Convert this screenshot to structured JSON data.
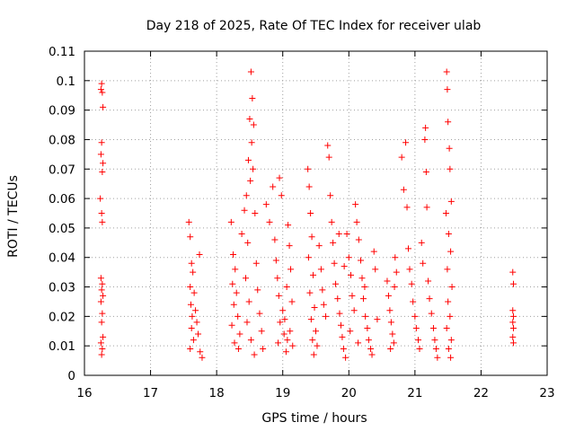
{
  "chart_data": {
    "type": "scatter",
    "title": "Day 218 of 2025, Rate Of TEC Index for receiver ulab",
    "xlabel": "GPS time / hours",
    "ylabel": "ROTI / TECUs",
    "xlim": [
      16,
      23
    ],
    "ylim": [
      0,
      0.11
    ],
    "x_ticks": [
      "16",
      "17",
      "18",
      "19",
      "20",
      "21",
      "22",
      "23"
    ],
    "y_ticks": [
      "0",
      "0.01",
      "0.02",
      "0.03",
      "0.04",
      "0.05",
      "0.06",
      "0.07",
      "0.08",
      "0.09",
      "0.1",
      "0.11"
    ],
    "grid": true,
    "legend": "none",
    "marker": "+",
    "color": "#ff0000",
    "series": [
      {
        "points": [
          [
            16.26,
            0.099
          ],
          [
            16.27,
            0.096
          ],
          [
            16.25,
            0.097
          ],
          [
            16.28,
            0.091
          ],
          [
            16.26,
            0.079
          ],
          [
            16.25,
            0.075
          ],
          [
            16.28,
            0.072
          ],
          [
            16.27,
            0.069
          ],
          [
            16.24,
            0.06
          ],
          [
            16.26,
            0.055
          ],
          [
            16.27,
            0.052
          ],
          [
            16.25,
            0.033
          ],
          [
            16.27,
            0.031
          ],
          [
            16.26,
            0.029
          ],
          [
            16.28,
            0.027
          ],
          [
            16.25,
            0.025
          ],
          [
            16.27,
            0.021
          ],
          [
            16.26,
            0.018
          ],
          [
            16.28,
            0.013
          ],
          [
            16.25,
            0.011
          ],
          [
            16.27,
            0.009
          ],
          [
            16.26,
            0.007
          ],
          [
            17.58,
            0.052
          ],
          [
            17.6,
            0.047
          ],
          [
            17.62,
            0.038
          ],
          [
            17.64,
            0.035
          ],
          [
            17.6,
            0.03
          ],
          [
            17.66,
            0.028
          ],
          [
            17.61,
            0.024
          ],
          [
            17.68,
            0.022
          ],
          [
            17.63,
            0.02
          ],
          [
            17.7,
            0.018
          ],
          [
            17.62,
            0.016
          ],
          [
            17.72,
            0.014
          ],
          [
            17.65,
            0.012
          ],
          [
            17.6,
            0.009
          ],
          [
            17.75,
            0.008
          ],
          [
            17.78,
            0.006
          ],
          [
            17.74,
            0.041
          ],
          [
            18.22,
            0.052
          ],
          [
            18.25,
            0.041
          ],
          [
            18.28,
            0.036
          ],
          [
            18.24,
            0.031
          ],
          [
            18.3,
            0.028
          ],
          [
            18.26,
            0.024
          ],
          [
            18.32,
            0.02
          ],
          [
            18.23,
            0.017
          ],
          [
            18.35,
            0.014
          ],
          [
            18.27,
            0.011
          ],
          [
            18.33,
            0.009
          ],
          [
            18.38,
            0.048
          ],
          [
            18.42,
            0.056
          ],
          [
            18.45,
            0.061
          ],
          [
            18.48,
            0.073
          ],
          [
            18.5,
            0.087
          ],
          [
            18.52,
            0.103
          ],
          [
            18.54,
            0.094
          ],
          [
            18.56,
            0.085
          ],
          [
            18.53,
            0.079
          ],
          [
            18.55,
            0.07
          ],
          [
            18.51,
            0.066
          ],
          [
            18.58,
            0.055
          ],
          [
            18.47,
            0.045
          ],
          [
            18.6,
            0.038
          ],
          [
            18.44,
            0.033
          ],
          [
            18.62,
            0.029
          ],
          [
            18.49,
            0.025
          ],
          [
            18.65,
            0.021
          ],
          [
            18.46,
            0.018
          ],
          [
            18.68,
            0.015
          ],
          [
            18.52,
            0.012
          ],
          [
            18.7,
            0.009
          ],
          [
            18.57,
            0.007
          ],
          [
            18.75,
            0.058
          ],
          [
            18.8,
            0.052
          ],
          [
            18.85,
            0.064
          ],
          [
            18.88,
            0.046
          ],
          [
            18.9,
            0.039
          ],
          [
            18.92,
            0.033
          ],
          [
            18.95,
            0.067
          ],
          [
            18.98,
            0.061
          ],
          [
            18.94,
            0.027
          ],
          [
            19.0,
            0.022
          ],
          [
            18.96,
            0.018
          ],
          [
            19.02,
            0.014
          ],
          [
            18.93,
            0.011
          ],
          [
            19.05,
            0.008
          ],
          [
            19.08,
            0.051
          ],
          [
            19.1,
            0.044
          ],
          [
            19.12,
            0.036
          ],
          [
            19.06,
            0.03
          ],
          [
            19.14,
            0.025
          ],
          [
            19.03,
            0.019
          ],
          [
            19.11,
            0.015
          ],
          [
            19.07,
            0.012
          ],
          [
            19.15,
            0.01
          ],
          [
            19.38,
            0.07
          ],
          [
            19.4,
            0.064
          ],
          [
            19.42,
            0.055
          ],
          [
            19.44,
            0.047
          ],
          [
            19.39,
            0.04
          ],
          [
            19.46,
            0.034
          ],
          [
            19.41,
            0.028
          ],
          [
            19.48,
            0.023
          ],
          [
            19.43,
            0.019
          ],
          [
            19.5,
            0.015
          ],
          [
            19.45,
            0.012
          ],
          [
            19.52,
            0.01
          ],
          [
            19.47,
            0.007
          ],
          [
            19.55,
            0.044
          ],
          [
            19.58,
            0.036
          ],
          [
            19.6,
            0.029
          ],
          [
            19.62,
            0.024
          ],
          [
            19.65,
            0.02
          ],
          [
            19.68,
            0.078
          ],
          [
            19.7,
            0.074
          ],
          [
            19.72,
            0.061
          ],
          [
            19.74,
            0.052
          ],
          [
            19.76,
            0.045
          ],
          [
            19.78,
            0.038
          ],
          [
            19.8,
            0.031
          ],
          [
            19.83,
            0.026
          ],
          [
            19.86,
            0.021
          ],
          [
            19.88,
            0.017
          ],
          [
            19.9,
            0.013
          ],
          [
            19.92,
            0.009
          ],
          [
            19.95,
            0.006
          ],
          [
            19.97,
            0.048
          ],
          [
            20.0,
            0.04
          ],
          [
            20.03,
            0.034
          ],
          [
            20.05,
            0.027
          ],
          [
            20.08,
            0.022
          ],
          [
            20.1,
            0.058
          ],
          [
            20.12,
            0.052
          ],
          [
            20.15,
            0.046
          ],
          [
            20.18,
            0.039
          ],
          [
            20.2,
            0.033
          ],
          [
            20.22,
            0.026
          ],
          [
            20.25,
            0.02
          ],
          [
            20.28,
            0.016
          ],
          [
            20.3,
            0.012
          ],
          [
            20.33,
            0.009
          ],
          [
            20.35,
            0.007
          ],
          [
            20.38,
            0.042
          ],
          [
            20.4,
            0.036
          ],
          [
            20.43,
            0.019
          ],
          [
            19.85,
            0.048
          ],
          [
            19.93,
            0.037
          ],
          [
            20.02,
            0.015
          ],
          [
            20.14,
            0.011
          ],
          [
            20.24,
            0.03
          ],
          [
            20.58,
            0.032
          ],
          [
            20.6,
            0.027
          ],
          [
            20.62,
            0.022
          ],
          [
            20.64,
            0.018
          ],
          [
            20.66,
            0.014
          ],
          [
            20.68,
            0.011
          ],
          [
            20.7,
            0.04
          ],
          [
            20.72,
            0.035
          ],
          [
            20.63,
            0.009
          ],
          [
            20.69,
            0.03
          ],
          [
            20.8,
            0.074
          ],
          [
            20.83,
            0.063
          ],
          [
            20.86,
            0.079
          ],
          [
            20.88,
            0.057
          ],
          [
            20.9,
            0.043
          ],
          [
            20.92,
            0.036
          ],
          [
            20.95,
            0.031
          ],
          [
            20.97,
            0.025
          ],
          [
            21.0,
            0.02
          ],
          [
            21.02,
            0.016
          ],
          [
            21.05,
            0.012
          ],
          [
            21.07,
            0.009
          ],
          [
            21.1,
            0.045
          ],
          [
            21.12,
            0.038
          ],
          [
            21.15,
            0.08
          ],
          [
            21.16,
            0.084
          ],
          [
            21.17,
            0.069
          ],
          [
            21.18,
            0.057
          ],
          [
            21.2,
            0.032
          ],
          [
            21.22,
            0.026
          ],
          [
            21.25,
            0.021
          ],
          [
            21.28,
            0.016
          ],
          [
            21.3,
            0.012
          ],
          [
            21.32,
            0.009
          ],
          [
            21.34,
            0.006
          ],
          [
            21.48,
            0.103
          ],
          [
            21.49,
            0.097
          ],
          [
            21.5,
            0.086
          ],
          [
            21.52,
            0.077
          ],
          [
            21.53,
            0.07
          ],
          [
            21.55,
            0.059
          ],
          [
            21.47,
            0.055
          ],
          [
            21.51,
            0.048
          ],
          [
            21.54,
            0.042
          ],
          [
            21.49,
            0.036
          ],
          [
            21.56,
            0.03
          ],
          [
            21.5,
            0.025
          ],
          [
            21.53,
            0.02
          ],
          [
            21.48,
            0.016
          ],
          [
            21.55,
            0.012
          ],
          [
            21.51,
            0.009
          ],
          [
            21.54,
            0.006
          ],
          [
            22.48,
            0.035
          ],
          [
            22.49,
            0.031
          ],
          [
            22.48,
            0.022
          ],
          [
            22.49,
            0.02
          ],
          [
            22.48,
            0.018
          ],
          [
            22.49,
            0.016
          ],
          [
            22.48,
            0.013
          ],
          [
            22.49,
            0.011
          ]
        ]
      }
    ]
  }
}
